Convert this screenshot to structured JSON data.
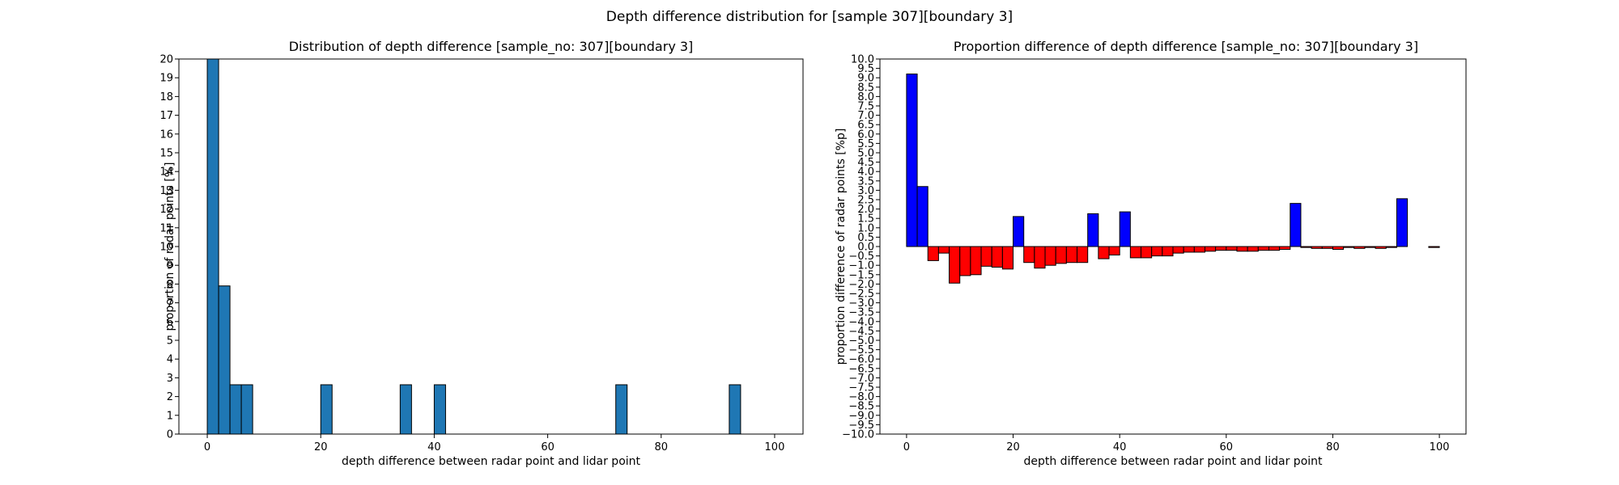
{
  "suptitle": "Depth difference distribution for [sample 307][boundary 3]",
  "chart_data": [
    {
      "type": "bar",
      "title": "Distribution of depth difference [sample_no: 307][boundary 3]",
      "xlabel": "depth difference between radar point and lidar point",
      "ylabel": "proportion of radar points [%]",
      "xlim": [
        -5,
        105
      ],
      "ylim": [
        0,
        20
      ],
      "xticks": [
        0,
        20,
        40,
        60,
        80,
        100
      ],
      "yticks": [
        0,
        1,
        2,
        3,
        4,
        5,
        6,
        7,
        8,
        9,
        10,
        11,
        12,
        13,
        14,
        15,
        16,
        17,
        18,
        19,
        20
      ],
      "bin_width": 2,
      "bin_starts": [
        0,
        2,
        4,
        6,
        20,
        34,
        40,
        72,
        92
      ],
      "values": [
        20,
        7.9,
        2.63,
        2.63,
        2.63,
        2.63,
        2.63,
        2.63,
        2.63
      ],
      "color": "#1f77b4",
      "grid": false
    },
    {
      "type": "bar",
      "title": "Proportion difference of depth difference [sample_no: 307][boundary 3]",
      "xlabel": "depth difference between radar point and lidar point",
      "ylabel": "proportion difference of radar points [%p]",
      "xlim": [
        -5,
        105
      ],
      "ylim": [
        -10,
        10
      ],
      "xticks": [
        0,
        20,
        40,
        60,
        80,
        100
      ],
      "ytick_step": 0.5,
      "bin_width": 2,
      "bin_starts": [
        0,
        2,
        4,
        6,
        8,
        10,
        12,
        14,
        16,
        18,
        20,
        22,
        24,
        26,
        28,
        30,
        32,
        34,
        36,
        38,
        40,
        42,
        44,
        46,
        48,
        50,
        52,
        54,
        56,
        58,
        60,
        62,
        64,
        66,
        68,
        70,
        72,
        74,
        76,
        78,
        80,
        82,
        84,
        86,
        88,
        90,
        92,
        94,
        96,
        98
      ],
      "values": [
        9.2,
        3.2,
        -0.75,
        -0.35,
        -1.95,
        -1.55,
        -1.5,
        -1.05,
        -1.1,
        -1.2,
        1.6,
        -0.85,
        -1.15,
        -1.0,
        -0.9,
        -0.85,
        -0.85,
        1.75,
        -0.65,
        -0.45,
        1.85,
        -0.6,
        -0.6,
        -0.5,
        -0.5,
        -0.35,
        -0.3,
        -0.3,
        -0.25,
        -0.2,
        -0.2,
        -0.25,
        -0.25,
        -0.2,
        -0.2,
        -0.15,
        2.3,
        -0.05,
        -0.1,
        -0.1,
        -0.15,
        -0.05,
        -0.1,
        -0.05,
        -0.1,
        -0.05,
        2.55,
        0,
        0,
        -0.05
      ],
      "positive_color": "#0000ff",
      "negative_color": "#ff0000",
      "grid": false
    }
  ]
}
